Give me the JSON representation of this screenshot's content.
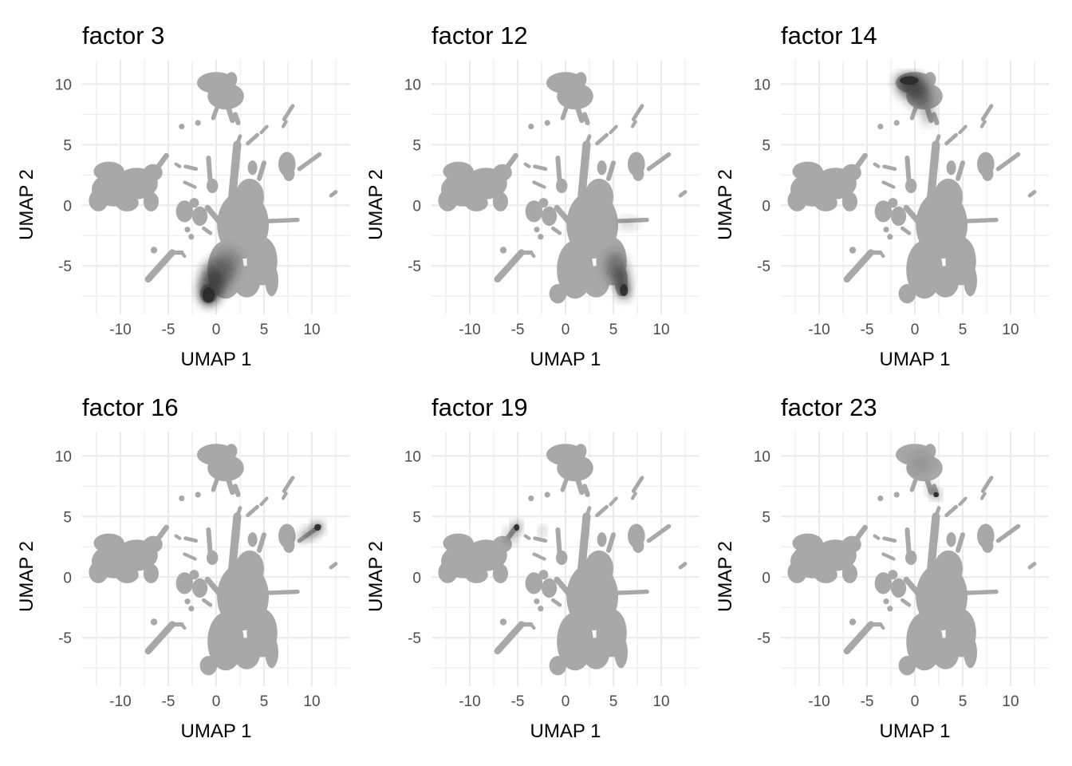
{
  "figure": {
    "background": "#ffffff"
  },
  "style": {
    "base_color": "#a8a8a8",
    "high_color": "#2a2a2a",
    "grid_color": "#ebebeb"
  },
  "chart_data": [
    {
      "type": "scatter",
      "title": "factor  3",
      "xlabel": "UMAP 1",
      "ylabel": "UMAP 2",
      "xlim": [
        -14,
        14
      ],
      "ylim": [
        -9,
        12
      ],
      "xticks": [
        -10,
        -5,
        0,
        5,
        10
      ],
      "xtick_labels": [
        "-10",
        "-5",
        "0",
        "5",
        "10"
      ],
      "yticks": [
        -5,
        0,
        5,
        10
      ],
      "ytick_labels": [
        "-5",
        "0",
        "5",
        "10"
      ],
      "grid": true,
      "highlight": [
        {
          "x": -0.8,
          "y": -7.4,
          "rx": 0.9,
          "ry": 0.9,
          "intensity": 1.0
        },
        {
          "x": -0.4,
          "y": -6.5,
          "rx": 1.4,
          "ry": 1.3,
          "intensity": 0.8
        },
        {
          "x": 0.3,
          "y": -5.5,
          "rx": 1.7,
          "ry": 1.2,
          "intensity": 0.55
        },
        {
          "x": 1.3,
          "y": -4.5,
          "rx": 1.4,
          "ry": 1.0,
          "intensity": 0.3
        }
      ]
    },
    {
      "type": "scatter",
      "title": "factor  12",
      "xlabel": "UMAP 1",
      "ylabel": "UMAP 2",
      "xlim": [
        -14,
        14
      ],
      "ylim": [
        -9,
        12
      ],
      "xticks": [
        -10,
        -5,
        0,
        5,
        10
      ],
      "xtick_labels": [
        "-10",
        "-5",
        "0",
        "5",
        "10"
      ],
      "yticks": [
        -5,
        0,
        5,
        10
      ],
      "ytick_labels": [
        "-5",
        "0",
        "5",
        "10"
      ],
      "grid": true,
      "highlight": [
        {
          "x": 6.1,
          "y": -7.0,
          "rx": 0.6,
          "ry": 0.7,
          "intensity": 1.0
        },
        {
          "x": 5.8,
          "y": -6.0,
          "rx": 0.8,
          "ry": 1.0,
          "intensity": 0.75
        },
        {
          "x": 5.2,
          "y": -5.0,
          "rx": 1.1,
          "ry": 1.2,
          "intensity": 0.5
        },
        {
          "x": 6.5,
          "y": -1.5,
          "rx": 1.0,
          "ry": 0.4,
          "intensity": 0.3
        }
      ]
    },
    {
      "type": "scatter",
      "title": "factor  14",
      "xlabel": "UMAP 1",
      "ylabel": "UMAP 2",
      "xlim": [
        -14,
        14
      ],
      "ylim": [
        -9,
        12
      ],
      "xticks": [
        -10,
        -5,
        0,
        5,
        10
      ],
      "xtick_labels": [
        "-10",
        "-5",
        "0",
        "5",
        "10"
      ],
      "yticks": [
        -5,
        0,
        5,
        10
      ],
      "ytick_labels": [
        "-5",
        "0",
        "5",
        "10"
      ],
      "grid": true,
      "highlight": [
        {
          "x": -0.6,
          "y": 10.3,
          "rx": 1.4,
          "ry": 0.5,
          "intensity": 1.0
        },
        {
          "x": -0.2,
          "y": 9.6,
          "rx": 1.6,
          "ry": 0.8,
          "intensity": 0.8
        },
        {
          "x": 0.6,
          "y": 8.8,
          "rx": 1.2,
          "ry": 0.8,
          "intensity": 0.6
        },
        {
          "x": 1.4,
          "y": 7.5,
          "rx": 0.6,
          "ry": 0.8,
          "intensity": 0.5
        }
      ]
    },
    {
      "type": "scatter",
      "title": "factor  16",
      "xlabel": "UMAP 1",
      "ylabel": "UMAP 2",
      "xlim": [
        -14,
        14
      ],
      "ylim": [
        -9,
        12
      ],
      "xticks": [
        -10,
        -5,
        0,
        5,
        10
      ],
      "xtick_labels": [
        "-10",
        "-5",
        "0",
        "5",
        "10"
      ],
      "yticks": [
        -5,
        0,
        5,
        10
      ],
      "ytick_labels": [
        "-5",
        "0",
        "5",
        "10"
      ],
      "grid": true,
      "highlight": [
        {
          "x": 10.6,
          "y": 4.1,
          "rx": 0.5,
          "ry": 0.4,
          "intensity": 1.0
        },
        {
          "x": 9.8,
          "y": 3.6,
          "rx": 0.7,
          "ry": 0.4,
          "intensity": 0.75
        },
        {
          "x": 9.0,
          "y": 3.2,
          "rx": 0.5,
          "ry": 0.3,
          "intensity": 0.45
        }
      ]
    },
    {
      "type": "scatter",
      "title": "factor  19",
      "xlabel": "UMAP 1",
      "ylabel": "UMAP 2",
      "xlim": [
        -14,
        14
      ],
      "ylim": [
        -9,
        12
      ],
      "xticks": [
        -10,
        -5,
        0,
        5,
        10
      ],
      "xtick_labels": [
        "-10",
        "-5",
        "0",
        "5",
        "10"
      ],
      "yticks": [
        -5,
        0,
        5,
        10
      ],
      "ytick_labels": [
        "-5",
        "0",
        "5",
        "10"
      ],
      "grid": true,
      "highlight": [
        {
          "x": -5.1,
          "y": 4.1,
          "rx": 0.4,
          "ry": 0.4,
          "intensity": 1.0
        },
        {
          "x": -5.7,
          "y": 3.4,
          "rx": 0.5,
          "ry": 0.5,
          "intensity": 0.6
        },
        {
          "x": -2.4,
          "y": 3.8,
          "rx": 0.3,
          "ry": 0.3,
          "intensity": 0.6
        }
      ]
    },
    {
      "type": "scatter",
      "title": "factor  23",
      "xlabel": "UMAP 1",
      "ylabel": "UMAP 2",
      "xlim": [
        -14,
        14
      ],
      "ylim": [
        -9,
        12
      ],
      "xticks": [
        -10,
        -5,
        0,
        5,
        10
      ],
      "xtick_labels": [
        "-10",
        "-5",
        "0",
        "5",
        "10"
      ],
      "yticks": [
        -5,
        0,
        5,
        10
      ],
      "ytick_labels": [
        "-5",
        "0",
        "5",
        "10"
      ],
      "grid": true,
      "highlight": [
        {
          "x": 2.2,
          "y": 6.8,
          "rx": 0.4,
          "ry": 0.3,
          "intensity": 1.0
        },
        {
          "x": 1.7,
          "y": 7.3,
          "rx": 0.4,
          "ry": 0.4,
          "intensity": 0.55
        },
        {
          "x": 0.6,
          "y": 9.4,
          "rx": 1.3,
          "ry": 0.9,
          "intensity": 0.18
        }
      ]
    }
  ],
  "embedding": {
    "shapes": [
      {
        "kind": "ellipse",
        "cx": -11.2,
        "cy": 2.8,
        "rx": 1.6,
        "ry": 0.8
      },
      {
        "kind": "ellipse",
        "cx": -10.6,
        "cy": 1.3,
        "rx": 2.4,
        "ry": 1.4
      },
      {
        "kind": "ellipse",
        "cx": -8.3,
        "cy": 1.8,
        "rx": 2.2,
        "ry": 1.3
      },
      {
        "kind": "ellipse",
        "cx": -6.6,
        "cy": 2.7,
        "rx": 1.0,
        "ry": 0.7
      },
      {
        "kind": "ellipse",
        "cx": -12.3,
        "cy": 0.4,
        "rx": 1.0,
        "ry": 0.9
      },
      {
        "kind": "ellipse",
        "cx": -9.3,
        "cy": 0.2,
        "rx": 1.2,
        "ry": 0.7
      },
      {
        "kind": "ellipse",
        "cx": -6.8,
        "cy": 0.3,
        "rx": 0.8,
        "ry": 0.8
      },
      {
        "kind": "line",
        "x1": -6.5,
        "y1": 2.7,
        "x2": -5.2,
        "y2": 4.1,
        "w": 0.55
      },
      {
        "kind": "ellipse",
        "cx": 0.0,
        "cy": 10.1,
        "rx": 2.0,
        "ry": 0.9
      },
      {
        "kind": "ellipse",
        "cx": 1.0,
        "cy": 9.0,
        "rx": 1.9,
        "ry": 1.1
      },
      {
        "kind": "ellipse",
        "cx": 1.6,
        "cy": 10.4,
        "rx": 0.6,
        "ry": 0.6
      },
      {
        "kind": "line",
        "x1": 1.3,
        "y1": 8.0,
        "x2": 1.7,
        "y2": 7.0,
        "w": 0.55
      },
      {
        "kind": "line",
        "x1": 0.2,
        "y1": 8.3,
        "x2": -0.3,
        "y2": 7.2,
        "w": 0.45
      },
      {
        "kind": "line",
        "x1": 2.0,
        "y1": 7.5,
        "x2": 2.3,
        "y2": 6.8,
        "w": 0.5
      },
      {
        "kind": "circle",
        "cx": -3.6,
        "cy": 6.5,
        "r": 0.3
      },
      {
        "kind": "circle",
        "cx": -1.9,
        "cy": 6.8,
        "r": 0.3
      },
      {
        "kind": "line",
        "x1": 3.3,
        "y1": 5.1,
        "x2": 4.3,
        "y2": 5.8,
        "w": 0.4
      },
      {
        "kind": "line",
        "x1": 4.7,
        "y1": 6.0,
        "x2": 5.3,
        "y2": 6.5,
        "w": 0.35
      },
      {
        "kind": "line",
        "x1": 7.1,
        "y1": 7.1,
        "x2": 8.0,
        "y2": 8.2,
        "w": 0.4
      },
      {
        "kind": "line",
        "x1": 7.0,
        "y1": 6.5,
        "x2": 7.3,
        "y2": 6.9,
        "w": 0.35
      },
      {
        "kind": "ellipse",
        "cx": 7.4,
        "cy": 3.4,
        "rx": 0.9,
        "ry": 1.0
      },
      {
        "kind": "ellipse",
        "cx": 7.6,
        "cy": 2.6,
        "rx": 0.6,
        "ry": 0.6
      },
      {
        "kind": "line",
        "x1": 8.7,
        "y1": 3.0,
        "x2": 10.8,
        "y2": 4.2,
        "w": 0.45
      },
      {
        "kind": "line",
        "x1": 12.0,
        "y1": 0.8,
        "x2": 12.5,
        "y2": 1.1,
        "w": 0.4
      },
      {
        "kind": "line",
        "x1": 1.6,
        "y1": 0.0,
        "x2": 2.2,
        "y2": 5.0,
        "w": 0.85
      },
      {
        "kind": "line",
        "x1": 2.2,
        "y1": 5.0,
        "x2": 2.5,
        "y2": 5.7,
        "w": 0.4
      },
      {
        "kind": "ellipse",
        "cx": 2.8,
        "cy": -1.6,
        "rx": 2.7,
        "ry": 2.8
      },
      {
        "kind": "ellipse",
        "cx": 3.5,
        "cy": 0.7,
        "rx": 1.5,
        "ry": 1.5
      },
      {
        "kind": "ellipse",
        "cx": 1.0,
        "cy": -5.3,
        "rx": 1.9,
        "ry": 2.4
      },
      {
        "kind": "ellipse",
        "cx": 4.8,
        "cy": -4.6,
        "rx": 1.6,
        "ry": 2.0
      },
      {
        "kind": "ellipse",
        "cx": 5.8,
        "cy": -6.2,
        "rx": 0.7,
        "ry": 1.3
      },
      {
        "kind": "ellipse",
        "cx": -0.8,
        "cy": -7.3,
        "rx": 0.9,
        "ry": 0.8
      },
      {
        "kind": "ellipse",
        "cx": 3.2,
        "cy": -6.3,
        "rx": 1.4,
        "ry": 1.3
      },
      {
        "kind": "line",
        "x1": 5.5,
        "y1": -1.3,
        "x2": 8.5,
        "y2": -1.2,
        "w": 0.45
      },
      {
        "kind": "line",
        "x1": 4.5,
        "y1": 2.2,
        "x2": 5.0,
        "y2": 3.5,
        "w": 0.5
      },
      {
        "kind": "ellipse",
        "cx": 3.8,
        "cy": 3.1,
        "rx": 0.5,
        "ry": 0.6
      },
      {
        "kind": "line",
        "x1": -0.8,
        "y1": 3.9,
        "x2": -0.6,
        "y2": 1.8,
        "w": 0.5
      },
      {
        "kind": "ellipse",
        "cx": -0.4,
        "cy": 1.6,
        "rx": 0.6,
        "ry": 0.6
      },
      {
        "kind": "line",
        "x1": -3.2,
        "y1": 3.2,
        "x2": -2.1,
        "y2": 3.0,
        "w": 0.4
      },
      {
        "kind": "line",
        "x1": -4.2,
        "y1": 3.4,
        "x2": -3.8,
        "y2": 3.2,
        "w": 0.35
      },
      {
        "kind": "line",
        "x1": -3.3,
        "y1": 1.9,
        "x2": -2.2,
        "y2": 1.5,
        "w": 0.35
      },
      {
        "kind": "ellipse",
        "cx": -3.3,
        "cy": -0.5,
        "rx": 0.9,
        "ry": 0.9
      },
      {
        "kind": "ellipse",
        "cx": -1.7,
        "cy": -0.9,
        "rx": 0.8,
        "ry": 0.8
      },
      {
        "kind": "ellipse",
        "cx": -2.3,
        "cy": 0.2,
        "rx": 0.5,
        "ry": 0.4
      },
      {
        "kind": "line",
        "x1": -0.9,
        "y1": -0.2,
        "x2": 0.4,
        "y2": -1.4,
        "w": 0.6
      },
      {
        "kind": "line",
        "x1": -7.1,
        "y1": -6.1,
        "x2": -4.6,
        "y2": -3.9,
        "w": 0.7
      },
      {
        "kind": "line",
        "x1": -4.7,
        "y1": -3.9,
        "x2": -3.6,
        "y2": -3.9,
        "w": 0.45
      },
      {
        "kind": "line",
        "x1": -3.6,
        "y1": -3.9,
        "x2": -3.3,
        "y2": -4.2,
        "w": 0.35
      },
      {
        "kind": "circle",
        "cx": -6.5,
        "cy": -3.7,
        "r": 0.35
      },
      {
        "kind": "circle",
        "cx": -2.6,
        "cy": -2.6,
        "r": 0.3
      },
      {
        "kind": "circle",
        "cx": -3.0,
        "cy": -2.0,
        "r": 0.3
      },
      {
        "kind": "line",
        "x1": -1.3,
        "y1": -1.9,
        "x2": -0.6,
        "y2": -2.3,
        "w": 0.4
      }
    ]
  }
}
